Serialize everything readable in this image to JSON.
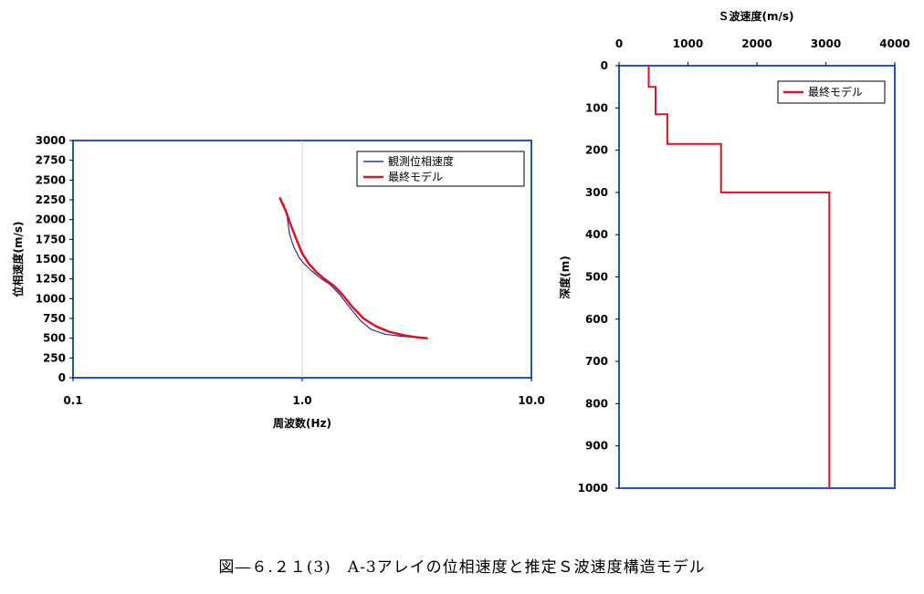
{
  "caption": "図―６.２１(3)　A-3アレイの位相速度と推定Ｓ波速度構造モデル",
  "colors": {
    "frame": "#2255cc",
    "observed": "#2233aa",
    "model": "#dd1122"
  },
  "chart_data": [
    {
      "type": "line",
      "xlabel": "周波数(Hz)",
      "ylabel": "位相速度(m/s)",
      "xscale": "log",
      "xlim": [
        0.1,
        10.0
      ],
      "ylim": [
        0,
        3000
      ],
      "xticks": [
        "0.1",
        "1.0",
        "10.0"
      ],
      "yticks": [
        "0",
        "250",
        "500",
        "750",
        "1000",
        "1250",
        "1500",
        "1750",
        "2000",
        "2250",
        "2500",
        "2750",
        "3000"
      ],
      "legend_position": "top-right",
      "series": [
        {
          "name": "観測位相速度",
          "points": [
            [
              0.83,
              2200
            ],
            [
              0.86,
              2030
            ],
            [
              0.88,
              1820
            ],
            [
              0.92,
              1650
            ],
            [
              0.97,
              1520
            ],
            [
              1.02,
              1440
            ],
            [
              1.1,
              1350
            ],
            [
              1.2,
              1260
            ],
            [
              1.32,
              1180
            ],
            [
              1.45,
              1060
            ],
            [
              1.6,
              900
            ],
            [
              1.8,
              720
            ],
            [
              2.0,
              610
            ],
            [
              2.3,
              550
            ],
            [
              2.7,
              525
            ],
            [
              3.1,
              510
            ],
            [
              3.5,
              500
            ]
          ]
        },
        {
          "name": "最終モデル",
          "points": [
            [
              0.8,
              2270
            ],
            [
              0.85,
              2100
            ],
            [
              0.9,
              1900
            ],
            [
              0.95,
              1730
            ],
            [
              1.0,
              1570
            ],
            [
              1.07,
              1440
            ],
            [
              1.15,
              1340
            ],
            [
              1.25,
              1250
            ],
            [
              1.38,
              1160
            ],
            [
              1.5,
              1050
            ],
            [
              1.65,
              900
            ],
            [
              1.85,
              750
            ],
            [
              2.1,
              650
            ],
            [
              2.4,
              580
            ],
            [
              2.8,
              535
            ],
            [
              3.2,
              510
            ],
            [
              3.5,
              500
            ]
          ]
        }
      ]
    },
    {
      "type": "line",
      "xlabel": "Ｓ波速度(m/s)",
      "ylabel": "深度(m)",
      "xlim": [
        0,
        4000
      ],
      "ylim": [
        0,
        1000
      ],
      "y_inverted": true,
      "x_axis_position": "top",
      "xticks": [
        "0",
        "1000",
        "2000",
        "3000",
        "4000"
      ],
      "yticks": [
        "0",
        "100",
        "200",
        "300",
        "400",
        "500",
        "600",
        "700",
        "800",
        "900",
        "1000"
      ],
      "legend_position": "top-right",
      "series": [
        {
          "name": "最終モデル",
          "points": [
            [
              430,
              0
            ],
            [
              430,
              50
            ],
            [
              530,
              50
            ],
            [
              530,
              115
            ],
            [
              700,
              115
            ],
            [
              700,
              185
            ],
            [
              1480,
              185
            ],
            [
              1480,
              300
            ],
            [
              3050,
              300
            ],
            [
              3050,
              1000
            ]
          ]
        }
      ]
    }
  ]
}
